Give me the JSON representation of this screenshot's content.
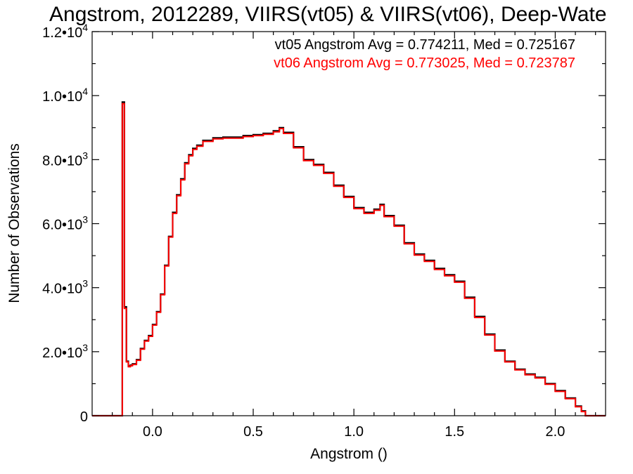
{
  "colors": {
    "vt05": "#000000",
    "vt06": "#ff0000"
  },
  "chart_data": {
    "type": "line",
    "title": "Angstrom, 2012289, VIIRS(vt05) & VIIRS(vt06), Deep-Wate",
    "xlabel": "Angstrom ()",
    "ylabel": "Number of Observations",
    "xlim": [
      -0.3,
      2.25
    ],
    "ylim": [
      0,
      12000
    ],
    "grid": false,
    "x_ticks": [
      {
        "value": 0.0,
        "label": "0.0"
      },
      {
        "value": 0.5,
        "label": "0.5"
      },
      {
        "value": 1.0,
        "label": "1.0"
      },
      {
        "value": 1.5,
        "label": "1.5"
      },
      {
        "value": 2.0,
        "label": "2.0"
      }
    ],
    "y_ticks": [
      {
        "value": 0,
        "label": "0"
      },
      {
        "value": 2000,
        "mantissa": "2.0•10",
        "exp": "3"
      },
      {
        "value": 4000,
        "mantissa": "4.0•10",
        "exp": "3"
      },
      {
        "value": 6000,
        "mantissa": "6.0•10",
        "exp": "3"
      },
      {
        "value": 8000,
        "mantissa": "8.0•10",
        "exp": "3"
      },
      {
        "value": 10000,
        "mantissa": "1.0•10",
        "exp": "4"
      },
      {
        "value": 12000,
        "mantissa": "1.2•10",
        "exp": "4"
      }
    ],
    "annotations": [
      "vt05 Angstrom Avg = 0.774211, Med = 0.725167",
      "vt06 Angstrom Avg = 0.773025, Med = 0.723787"
    ],
    "series": [
      {
        "name": "vt05",
        "color": "#000000",
        "x": [
          -0.3,
          -0.16,
          -0.15,
          -0.14,
          -0.13,
          -0.12,
          -0.11,
          -0.1,
          -0.08,
          -0.06,
          -0.04,
          -0.02,
          0.0,
          0.02,
          0.04,
          0.06,
          0.08,
          0.1,
          0.12,
          0.14,
          0.16,
          0.18,
          0.2,
          0.22,
          0.25,
          0.3,
          0.35,
          0.4,
          0.45,
          0.5,
          0.55,
          0.6,
          0.63,
          0.65,
          0.7,
          0.75,
          0.8,
          0.85,
          0.9,
          0.95,
          1.0,
          1.05,
          1.1,
          1.13,
          1.15,
          1.2,
          1.25,
          1.3,
          1.35,
          1.4,
          1.45,
          1.5,
          1.55,
          1.6,
          1.65,
          1.7,
          1.75,
          1.8,
          1.85,
          1.9,
          1.95,
          2.0,
          2.05,
          2.1,
          2.13,
          2.15,
          2.25
        ],
        "y": [
          0,
          0,
          9800,
          3400,
          1700,
          1550,
          1580,
          1620,
          1750,
          2100,
          2350,
          2500,
          2850,
          3250,
          3800,
          4700,
          5600,
          6350,
          6900,
          7400,
          7900,
          8150,
          8350,
          8450,
          8600,
          8680,
          8700,
          8700,
          8750,
          8780,
          8820,
          8900,
          9000,
          8850,
          8400,
          8000,
          7850,
          7600,
          7200,
          6850,
          6500,
          6350,
          6450,
          6600,
          6250,
          5950,
          5400,
          5050,
          4850,
          4600,
          4400,
          4200,
          3700,
          3100,
          2550,
          2050,
          1700,
          1450,
          1300,
          1200,
          1000,
          780,
          550,
          300,
          150,
          0,
          0
        ]
      },
      {
        "name": "vt06",
        "color": "#ff0000",
        "x": [
          -0.3,
          -0.16,
          -0.15,
          -0.14,
          -0.13,
          -0.12,
          -0.11,
          -0.1,
          -0.08,
          -0.06,
          -0.04,
          -0.02,
          0.0,
          0.02,
          0.04,
          0.06,
          0.08,
          0.1,
          0.12,
          0.14,
          0.16,
          0.18,
          0.2,
          0.22,
          0.25,
          0.3,
          0.35,
          0.4,
          0.45,
          0.5,
          0.55,
          0.6,
          0.63,
          0.65,
          0.7,
          0.75,
          0.8,
          0.85,
          0.9,
          0.95,
          1.0,
          1.05,
          1.1,
          1.13,
          1.15,
          1.2,
          1.25,
          1.3,
          1.35,
          1.4,
          1.45,
          1.5,
          1.55,
          1.6,
          1.65,
          1.7,
          1.75,
          1.8,
          1.85,
          1.9,
          1.95,
          2.0,
          2.05,
          2.1,
          2.13,
          2.15,
          2.25
        ],
        "y": [
          0,
          0,
          9750,
          3350,
          1680,
          1530,
          1560,
          1600,
          1730,
          2080,
          2330,
          2480,
          2830,
          3230,
          3780,
          4680,
          5580,
          6320,
          6870,
          7370,
          7870,
          8120,
          8320,
          8420,
          8570,
          8650,
          8670,
          8670,
          8720,
          8750,
          8790,
          8870,
          8970,
          8820,
          8370,
          7970,
          7820,
          7570,
          7170,
          6820,
          6470,
          6320,
          6420,
          6570,
          6220,
          5920,
          5370,
          5020,
          4820,
          4570,
          4370,
          4170,
          3670,
          3070,
          2520,
          2020,
          1680,
          1430,
          1280,
          1180,
          980,
          760,
          530,
          280,
          130,
          0,
          0
        ]
      }
    ]
  }
}
